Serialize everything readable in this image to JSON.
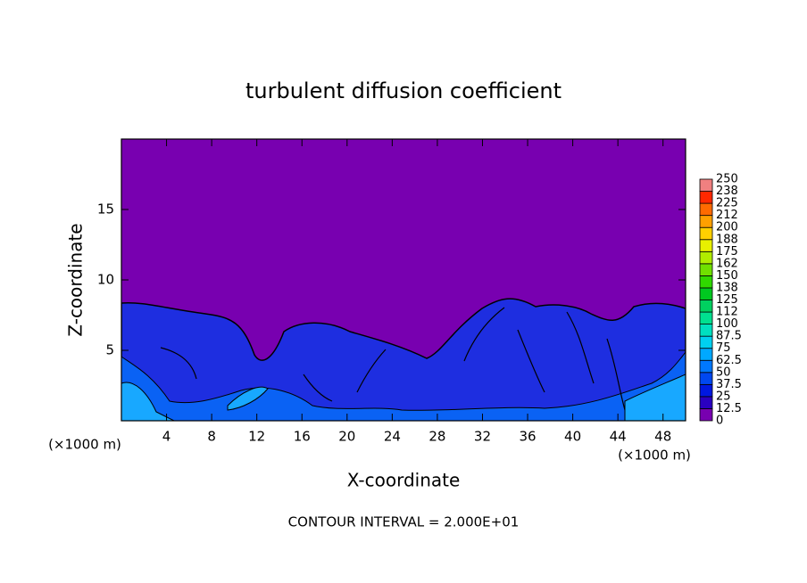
{
  "chart_data": {
    "type": "contour",
    "title": "turbulent diffusion coefficient",
    "x_label": "X-coordinate",
    "y_label": "Z-coordinate",
    "x_unit_label": "(×1000 m)",
    "footer": "CONTOUR INTERVAL = 2.000E+01",
    "xlim": [
      0,
      50
    ],
    "ylim": [
      0,
      20
    ],
    "xticks": [
      4,
      8,
      12,
      16,
      20,
      24,
      28,
      32,
      36,
      40,
      44,
      48
    ],
    "yticks": [
      5,
      10,
      15
    ],
    "colorbar": {
      "levels": [
        0,
        12.5,
        25,
        37.5,
        50,
        62.5,
        75,
        87.5,
        100,
        {
          "value": 112.5,
          "label": "112"
        },
        125,
        {
          "value": 137.5,
          "label": "138"
        },
        150,
        {
          "value": 162.5,
          "label": "162"
        },
        175,
        {
          "value": 187.5,
          "label": "188"
        },
        200,
        {
          "value": 212.5,
          "label": "212"
        },
        225,
        {
          "value": 237.5,
          "label": "238"
        },
        250
      ],
      "colors": [
        "#7800b0",
        "#2a00c0",
        "#0018e0",
        "#0048f0",
        "#0078ff",
        "#00a8ff",
        "#00d0f0",
        "#00e0c0",
        "#00e090",
        "#00d060",
        "#00c820",
        "#30d800",
        "#70e000",
        "#b0ec00",
        "#e8f000",
        "#ffd000",
        "#ffa000",
        "#ff6a00",
        "#ff2800",
        "#f08080"
      ]
    }
  }
}
